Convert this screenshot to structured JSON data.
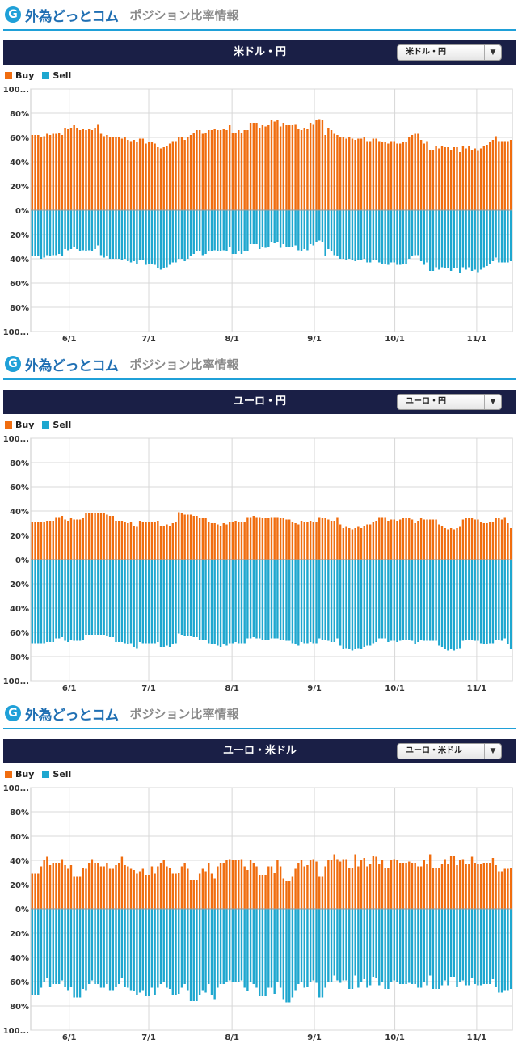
{
  "brand": {
    "logo_letter": "G",
    "name": "外為どっとコム",
    "subtitle": "ポジション比率情報"
  },
  "colors": {
    "buy": "#f06d0f",
    "sell": "#1ea7cf",
    "header": "#1a1f46",
    "accent": "#1fa0d8"
  },
  "legend": {
    "buy": "Buy",
    "sell": "Sell"
  },
  "panels": [
    {
      "title": "米ドル・円",
      "selected": "米ドル・円"
    },
    {
      "title": "ユーロ・円",
      "selected": "ユーロ・円"
    },
    {
      "title": "ユーロ・米ドル",
      "selected": "ユーロ・米ドル"
    }
  ],
  "chart_data": [
    {
      "type": "bar",
      "title": "米ドル・円",
      "series": [
        {
          "name": "Buy",
          "values": [
            62,
            62,
            62,
            60,
            61,
            63,
            62,
            63,
            63,
            64,
            62,
            68,
            67,
            68,
            70,
            68,
            66,
            67,
            66,
            67,
            66,
            68,
            71,
            63,
            61,
            62,
            60,
            60,
            60,
            60,
            59,
            60,
            58,
            57,
            58,
            56,
            59,
            59,
            55,
            56,
            56,
            55,
            52,
            51,
            52,
            53,
            55,
            57,
            57,
            60,
            60,
            58,
            60,
            62,
            64,
            66,
            66,
            63,
            64,
            66,
            66,
            67,
            66,
            66,
            67,
            66,
            70,
            64,
            64,
            66,
            64,
            66,
            66,
            72,
            72,
            72,
            68,
            70,
            69,
            70,
            74,
            73,
            74,
            69,
            72,
            70,
            70,
            70,
            71,
            67,
            66,
            68,
            67,
            72,
            71,
            74,
            75,
            74,
            62,
            68,
            66,
            63,
            62,
            60,
            60,
            59,
            60,
            59,
            58,
            59,
            59,
            60,
            57,
            57,
            59,
            59,
            57,
            56,
            56,
            55,
            57,
            57,
            55,
            55,
            56,
            56,
            60,
            62,
            63,
            63,
            58,
            55,
            57,
            50,
            50,
            53,
            51,
            53,
            52,
            52,
            50,
            52,
            52,
            48,
            53,
            51,
            53,
            50,
            51,
            49,
            51,
            53,
            54,
            56,
            58,
            61,
            57,
            57,
            57,
            57,
            58
          ]
        },
        {
          "name": "Sell",
          "values": [
            38,
            38,
            38,
            40,
            39,
            37,
            38,
            37,
            37,
            36,
            38,
            32,
            33,
            32,
            30,
            32,
            34,
            33,
            34,
            33,
            34,
            32,
            29,
            37,
            39,
            38,
            40,
            40,
            40,
            40,
            41,
            40,
            42,
            43,
            42,
            44,
            41,
            41,
            45,
            44,
            44,
            45,
            48,
            49,
            48,
            47,
            45,
            43,
            43,
            40,
            40,
            42,
            40,
            38,
            36,
            34,
            34,
            37,
            36,
            34,
            34,
            33,
            34,
            34,
            33,
            34,
            30,
            36,
            36,
            34,
            36,
            34,
            34,
            28,
            28,
            28,
            32,
            30,
            31,
            30,
            26,
            27,
            26,
            31,
            28,
            30,
            30,
            30,
            29,
            33,
            34,
            32,
            33,
            28,
            29,
            26,
            25,
            26,
            38,
            32,
            34,
            37,
            38,
            40,
            40,
            41,
            40,
            41,
            42,
            41,
            41,
            40,
            43,
            43,
            41,
            41,
            43,
            44,
            44,
            45,
            43,
            43,
            45,
            45,
            44,
            44,
            40,
            38,
            37,
            37,
            42,
            45,
            43,
            50,
            50,
            47,
            49,
            47,
            48,
            48,
            50,
            48,
            48,
            52,
            47,
            49,
            47,
            50,
            49,
            51,
            49,
            47,
            46,
            44,
            42,
            39,
            43,
            43,
            43,
            43,
            42
          ]
        }
      ],
      "x_tick_labels": [
        "6/1",
        "7/1",
        "8/1",
        "9/1",
        "10/1",
        "11/1"
      ],
      "y_tick_labels": [
        "100...",
        "80%",
        "60%",
        "40%",
        "20%",
        "0%",
        "20%",
        "40%",
        "60%",
        "80%",
        "100..."
      ],
      "ylim": [
        -100,
        100
      ]
    },
    {
      "type": "bar",
      "title": "ユーロ・円",
      "series": [
        {
          "name": "Buy",
          "values": [
            31,
            31,
            31,
            31,
            31,
            32,
            32,
            32,
            35,
            35,
            36,
            33,
            32,
            34,
            33,
            33,
            33,
            34,
            38,
            38,
            38,
            38,
            38,
            38,
            38,
            37,
            36,
            36,
            32,
            32,
            32,
            31,
            30,
            31,
            28,
            27,
            32,
            31,
            31,
            31,
            31,
            31,
            32,
            28,
            28,
            29,
            28,
            30,
            31,
            39,
            38,
            37,
            37,
            37,
            36,
            36,
            34,
            34,
            34,
            31,
            30,
            30,
            29,
            28,
            30,
            29,
            31,
            31,
            32,
            31,
            31,
            31,
            35,
            35,
            36,
            35,
            35,
            34,
            34,
            34,
            35,
            35,
            35,
            34,
            34,
            33,
            33,
            31,
            30,
            29,
            32,
            31,
            31,
            32,
            31,
            31,
            35,
            34,
            34,
            33,
            32,
            32,
            35,
            29,
            26,
            27,
            26,
            25,
            26,
            27,
            26,
            28,
            29,
            29,
            31,
            32,
            35,
            35,
            35,
            32,
            33,
            33,
            32,
            33,
            34,
            34,
            34,
            33,
            30,
            32,
            34,
            33,
            33,
            33,
            33,
            33,
            29,
            28,
            26,
            25,
            26,
            25,
            26,
            27,
            33,
            34,
            34,
            34,
            33,
            33,
            31,
            30,
            30,
            31,
            31,
            34,
            34,
            33,
            35,
            30,
            26
          ]
        },
        {
          "name": "Sell",
          "values": [
            69,
            69,
            69,
            69,
            69,
            68,
            68,
            68,
            65,
            65,
            64,
            67,
            68,
            66,
            67,
            67,
            67,
            66,
            62,
            62,
            62,
            62,
            62,
            62,
            62,
            63,
            64,
            64,
            68,
            68,
            68,
            69,
            70,
            69,
            72,
            73,
            68,
            69,
            69,
            69,
            69,
            69,
            68,
            72,
            72,
            71,
            72,
            70,
            69,
            61,
            62,
            63,
            63,
            63,
            64,
            64,
            66,
            66,
            66,
            69,
            70,
            70,
            71,
            72,
            70,
            71,
            69,
            69,
            68,
            69,
            69,
            69,
            65,
            65,
            64,
            65,
            65,
            66,
            66,
            66,
            65,
            65,
            65,
            66,
            66,
            67,
            67,
            69,
            70,
            71,
            68,
            69,
            69,
            68,
            69,
            69,
            65,
            66,
            66,
            67,
            68,
            68,
            65,
            71,
            74,
            73,
            74,
            75,
            74,
            73,
            74,
            72,
            71,
            71,
            69,
            68,
            65,
            65,
            65,
            68,
            67,
            67,
            68,
            67,
            66,
            66,
            66,
            67,
            70,
            68,
            66,
            67,
            67,
            67,
            67,
            67,
            71,
            72,
            74,
            75,
            74,
            75,
            74,
            73,
            67,
            66,
            66,
            66,
            67,
            67,
            69,
            70,
            70,
            69,
            69,
            66,
            66,
            67,
            65,
            70,
            74
          ]
        }
      ],
      "x_tick_labels": [
        "6/1",
        "7/1",
        "8/1",
        "9/1",
        "10/1",
        "11/1"
      ],
      "y_tick_labels": [
        "100...",
        "80%",
        "60%",
        "40%",
        "20%",
        "0%",
        "20%",
        "40%",
        "60%",
        "80%",
        "100..."
      ],
      "ylim": [
        -100,
        100
      ]
    },
    {
      "type": "bar",
      "title": "ユーロ・米ドル",
      "series": [
        {
          "name": "Buy",
          "values": [
            29,
            29,
            29,
            35,
            40,
            43,
            36,
            38,
            38,
            38,
            41,
            36,
            33,
            36,
            27,
            27,
            27,
            34,
            33,
            38,
            41,
            38,
            38,
            35,
            35,
            38,
            33,
            33,
            36,
            38,
            43,
            36,
            35,
            33,
            32,
            29,
            31,
            33,
            28,
            28,
            35,
            29,
            35,
            38,
            40,
            35,
            34,
            29,
            29,
            30,
            35,
            38,
            33,
            24,
            24,
            24,
            29,
            33,
            31,
            38,
            29,
            25,
            35,
            38,
            38,
            40,
            41,
            40,
            40,
            40,
            41,
            35,
            32,
            40,
            38,
            35,
            28,
            28,
            28,
            35,
            35,
            30,
            40,
            35,
            25,
            23,
            23,
            27,
            33,
            38,
            40,
            35,
            36,
            40,
            41,
            39,
            27,
            27,
            35,
            40,
            40,
            45,
            41,
            39,
            41,
            41,
            34,
            34,
            45,
            35,
            40,
            42,
            35,
            37,
            44,
            43,
            37,
            40,
            34,
            34,
            40,
            41,
            40,
            38,
            38,
            38,
            39,
            38,
            38,
            35,
            35,
            40,
            37,
            45,
            34,
            34,
            34,
            37,
            41,
            37,
            44,
            44,
            36,
            40,
            41,
            37,
            37,
            43,
            38,
            37,
            37,
            38,
            38,
            38,
            42,
            36,
            31,
            31,
            33,
            33,
            34
          ]
        },
        {
          "name": "Sell",
          "values": [
            71,
            71,
            71,
            65,
            60,
            57,
            64,
            62,
            62,
            62,
            59,
            64,
            67,
            64,
            73,
            73,
            73,
            66,
            67,
            62,
            59,
            62,
            62,
            65,
            65,
            62,
            67,
            67,
            64,
            62,
            57,
            64,
            65,
            67,
            68,
            71,
            69,
            67,
            72,
            72,
            65,
            71,
            65,
            62,
            60,
            65,
            66,
            71,
            71,
            70,
            65,
            62,
            67,
            76,
            76,
            76,
            71,
            67,
            69,
            62,
            71,
            75,
            65,
            62,
            62,
            60,
            59,
            60,
            60,
            60,
            59,
            65,
            68,
            60,
            62,
            65,
            72,
            72,
            72,
            65,
            65,
            70,
            60,
            65,
            75,
            77,
            77,
            73,
            67,
            62,
            60,
            65,
            64,
            60,
            59,
            61,
            73,
            73,
            65,
            60,
            60,
            55,
            59,
            61,
            59,
            59,
            66,
            66,
            55,
            65,
            60,
            58,
            65,
            63,
            56,
            57,
            63,
            60,
            66,
            66,
            60,
            59,
            60,
            62,
            62,
            62,
            61,
            62,
            62,
            65,
            65,
            60,
            63,
            55,
            66,
            66,
            66,
            63,
            59,
            63,
            56,
            56,
            64,
            60,
            59,
            63,
            63,
            57,
            62,
            63,
            63,
            62,
            62,
            62,
            58,
            64,
            69,
            69,
            67,
            67,
            66
          ]
        }
      ],
      "x_tick_labels": [
        "6/1",
        "7/1",
        "8/1",
        "9/1",
        "10/1",
        "11/1"
      ],
      "y_tick_labels": [
        "100...",
        "80%",
        "60%",
        "40%",
        "20%",
        "0%",
        "20%",
        "40%",
        "60%",
        "80%",
        "100..."
      ],
      "ylim": [
        -100,
        100
      ]
    }
  ]
}
